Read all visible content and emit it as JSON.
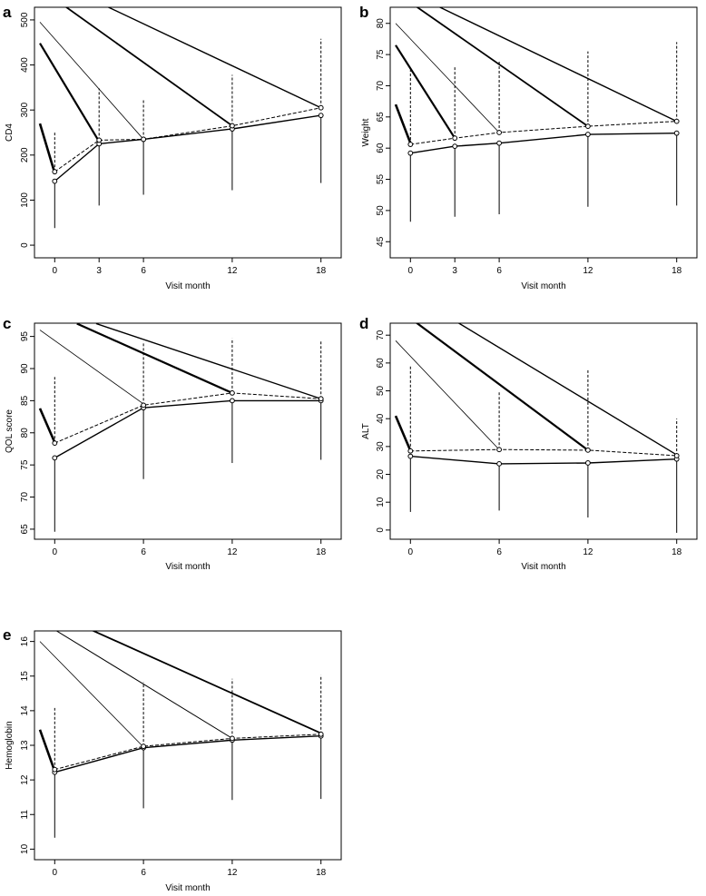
{
  "chart_data": [
    {
      "panel": "a",
      "type": "line",
      "xlabel": "Visit month",
      "ylabel": "CD4",
      "x": [
        0,
        3,
        6,
        12,
        18
      ],
      "xticks": [
        0,
        3,
        6,
        12,
        18
      ],
      "xlim": [
        -1,
        19
      ],
      "ylim": [
        -20,
        520
      ],
      "yticks": [
        0,
        100,
        200,
        300,
        400,
        500
      ],
      "series": [
        {
          "values": [
            142,
            225,
            235,
            258,
            288
          ]
        },
        {
          "values": [
            163,
            233,
            235,
            265,
            305
          ]
        }
      ],
      "error_bars": [
        {
          "x": 0,
          "lower": 38,
          "upper": 250
        },
        {
          "x": 3,
          "lower": 88,
          "upper": 348
        },
        {
          "x": 6,
          "lower": 112,
          "upper": 325
        },
        {
          "x": 12,
          "lower": 122,
          "upper": 378
        },
        {
          "x": 18,
          "lower": 138,
          "upper": 458
        }
      ],
      "dropout_lines": [
        {
          "from": [
            -1,
            270
          ],
          "to": [
            0,
            160
          ],
          "weight": 2.6
        },
        {
          "from": [
            -1,
            448
          ],
          "to": [
            3,
            230
          ],
          "weight": 2.2
        },
        {
          "from": [
            -1,
            495
          ],
          "to": [
            6,
            235
          ],
          "weight": 0.8
        },
        {
          "from": [
            -1,
            570
          ],
          "to": [
            12,
            265
          ],
          "weight": 1.8
        },
        {
          "from": [
            -1,
            600
          ],
          "to": [
            18,
            305
          ],
          "weight": 1.4
        }
      ]
    },
    {
      "panel": "b",
      "type": "line",
      "xlabel": "Visit month",
      "ylabel": "Weight",
      "x": [
        0,
        3,
        6,
        12,
        18
      ],
      "xticks": [
        0,
        3,
        6,
        12,
        18
      ],
      "xlim": [
        -1,
        19
      ],
      "ylim": [
        43,
        82
      ],
      "yticks": [
        45,
        50,
        55,
        60,
        65,
        70,
        75,
        80
      ],
      "series": [
        {
          "values": [
            59.2,
            60.3,
            60.8,
            62.2,
            62.4
          ]
        },
        {
          "values": [
            60.6,
            61.6,
            62.5,
            63.5,
            64.3
          ]
        }
      ],
      "error_bars": [
        {
          "x": 0,
          "lower": 48.2,
          "upper": 72.5
        },
        {
          "x": 3,
          "lower": 49.0,
          "upper": 73.0
        },
        {
          "x": 6,
          "lower": 49.4,
          "upper": 74.0
        },
        {
          "x": 12,
          "lower": 50.6,
          "upper": 75.5
        },
        {
          "x": 18,
          "lower": 50.8,
          "upper": 77.0
        }
      ],
      "dropout_lines": [
        {
          "from": [
            -1,
            67
          ],
          "to": [
            0,
            60.8
          ],
          "weight": 2.6
        },
        {
          "from": [
            -1,
            76.5
          ],
          "to": [
            3,
            61.6
          ],
          "weight": 2.2
        },
        {
          "from": [
            -1,
            80
          ],
          "to": [
            6,
            62.5
          ],
          "weight": 0.8
        },
        {
          "from": [
            -1,
            85
          ],
          "to": [
            12,
            63.5
          ],
          "weight": 1.8
        },
        {
          "from": [
            -1,
            86
          ],
          "to": [
            18,
            64.3
          ],
          "weight": 1.4
        }
      ]
    },
    {
      "panel": "c",
      "type": "line",
      "xlabel": "Visit month",
      "ylabel": "QOL score",
      "x": [
        0,
        6,
        12,
        18
      ],
      "xticks": [
        0,
        6,
        12,
        18
      ],
      "xlim": [
        -1,
        19
      ],
      "ylim": [
        64,
        96.5
      ],
      "yticks": [
        65,
        70,
        75,
        80,
        85,
        90,
        95
      ],
      "series": [
        {
          "values": [
            76.1,
            83.9,
            85.0,
            85.0
          ]
        },
        {
          "values": [
            78.4,
            84.3,
            86.2,
            85.3
          ]
        }
      ],
      "error_bars": [
        {
          "x": 0,
          "lower": 64.6,
          "upper": 88.7
        },
        {
          "x": 6,
          "lower": 72.8,
          "upper": 94.2
        },
        {
          "x": 12,
          "lower": 75.3,
          "upper": 94.7
        },
        {
          "x": 18,
          "lower": 75.8,
          "upper": 94.2
        }
      ],
      "dropout_lines": [
        {
          "from": [
            -1,
            83.8
          ],
          "to": [
            0,
            78.5
          ],
          "weight": 2.6
        },
        {
          "from": [
            -1,
            96
          ],
          "to": [
            6,
            84.5
          ],
          "weight": 0.8
        },
        {
          "from": [
            1.5,
            97
          ],
          "to": [
            12,
            86.2
          ],
          "weight": 2.2
        },
        {
          "from": [
            2.8,
            97
          ],
          "to": [
            18,
            85.3
          ],
          "weight": 1.4
        }
      ]
    },
    {
      "panel": "d",
      "type": "line",
      "xlabel": "Visit month",
      "ylabel": "ALT",
      "x": [
        0,
        6,
        12,
        18
      ],
      "xticks": [
        0,
        6,
        12,
        18
      ],
      "xlim": [
        -1,
        19
      ],
      "ylim": [
        -2,
        73
      ],
      "yticks": [
        0,
        10,
        20,
        30,
        40,
        50,
        60,
        70
      ],
      "series": [
        {
          "values": [
            26.5,
            23.8,
            24.1,
            25.5
          ]
        },
        {
          "values": [
            28.4,
            28.9,
            28.7,
            26.7
          ]
        }
      ],
      "error_bars": [
        {
          "x": 0,
          "lower": 6.5,
          "upper": 59.0
        },
        {
          "x": 6,
          "lower": 7.0,
          "upper": 50.0
        },
        {
          "x": 12,
          "lower": 4.5,
          "upper": 58.0
        },
        {
          "x": 18,
          "lower": -1.0,
          "upper": 40.0
        }
      ],
      "dropout_lines": [
        {
          "from": [
            -1,
            41
          ],
          "to": [
            0,
            28.5
          ],
          "weight": 2.6
        },
        {
          "from": [
            -1,
            68
          ],
          "to": [
            6,
            28.9
          ],
          "weight": 0.8
        },
        {
          "from": [
            -1,
            80
          ],
          "to": [
            12,
            28.7
          ],
          "weight": 2.2
        },
        {
          "from": [
            -1,
            88
          ],
          "to": [
            18,
            27.0
          ],
          "weight": 1.4
        }
      ]
    },
    {
      "panel": "e",
      "type": "line",
      "xlabel": "Visit month",
      "ylabel": "Hemoglobin",
      "x": [
        0,
        6,
        12,
        18
      ],
      "xticks": [
        0,
        6,
        12,
        18
      ],
      "xlim": [
        -1,
        19
      ],
      "ylim": [
        9.8,
        16.2
      ],
      "yticks": [
        10,
        11,
        12,
        13,
        14,
        15,
        16
      ],
      "series": [
        {
          "values": [
            12.22,
            12.93,
            13.15,
            13.27
          ]
        },
        {
          "values": [
            12.3,
            12.97,
            13.2,
            13.32
          ]
        }
      ],
      "error_bars": [
        {
          "x": 0,
          "lower": 10.33,
          "upper": 14.08
        },
        {
          "x": 6,
          "lower": 11.18,
          "upper": 14.82
        },
        {
          "x": 12,
          "lower": 11.42,
          "upper": 14.92
        },
        {
          "x": 18,
          "lower": 11.45,
          "upper": 15.03
        }
      ],
      "dropout_lines": [
        {
          "from": [
            -1,
            13.45
          ],
          "to": [
            0,
            12.25
          ],
          "weight": 2.6
        },
        {
          "from": [
            -1,
            16.0
          ],
          "to": [
            6,
            12.95
          ],
          "weight": 0.8
        },
        {
          "from": [
            -1,
            16.6
          ],
          "to": [
            12,
            13.2
          ],
          "weight": 1.0
        },
        {
          "from": [
            -1,
            17.0
          ],
          "to": [
            18,
            13.35
          ],
          "weight": 1.8
        }
      ]
    }
  ]
}
